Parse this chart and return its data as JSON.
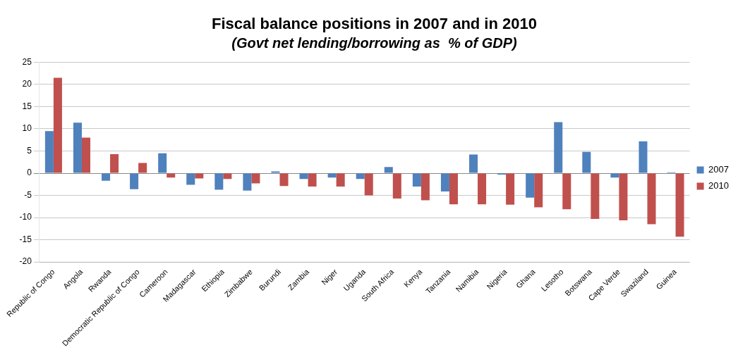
{
  "chart_data": {
    "type": "bar",
    "title": "Fiscal balance positions in 2007 and in 2010",
    "subtitle": "(Govt net lending/borrowing as  % of GDP)",
    "categories": [
      "Republic of Congo",
      "Angola",
      "Rwanda",
      "Democratic Republic of Congo",
      "Cameroon",
      "Madagascar",
      "Ethiopia",
      "Zimbabwe",
      "Burundi",
      "Zambia",
      "Niger",
      "Uganda",
      "South Africa",
      "Kenya",
      "Tanzania",
      "Namibia",
      "Nigeria",
      "Ghana",
      "Lesotho",
      "Botswana",
      "Cape Verde",
      "Swaziland",
      "Guinea"
    ],
    "series": [
      {
        "name": "2007",
        "color": "#4f81bd",
        "values": [
          9.5,
          11.4,
          -1.7,
          -3.6,
          4.5,
          -2.6,
          -3.7,
          -3.9,
          0.4,
          -1.3,
          -1.0,
          -1.3,
          1.4,
          -3.0,
          -4.1,
          4.2,
          -0.3,
          -5.5,
          11.5,
          4.8,
          -1.0,
          7.2,
          0.2
        ]
      },
      {
        "name": "2010",
        "color": "#c0504d",
        "values": [
          21.5,
          8.0,
          4.3,
          2.3,
          -1.0,
          -1.2,
          -1.3,
          -2.3,
          -2.9,
          -3.0,
          -3.0,
          -5.0,
          -5.7,
          -6.1,
          -7.0,
          -7.0,
          -7.1,
          -7.7,
          -8.1,
          -10.3,
          -10.6,
          -11.5,
          -14.3
        ]
      }
    ],
    "ylim": [
      -20,
      25
    ],
    "yticks": [
      -20,
      -15,
      -10,
      -5,
      0,
      5,
      10,
      15,
      20,
      25
    ],
    "grid": "y",
    "legend": "right"
  }
}
